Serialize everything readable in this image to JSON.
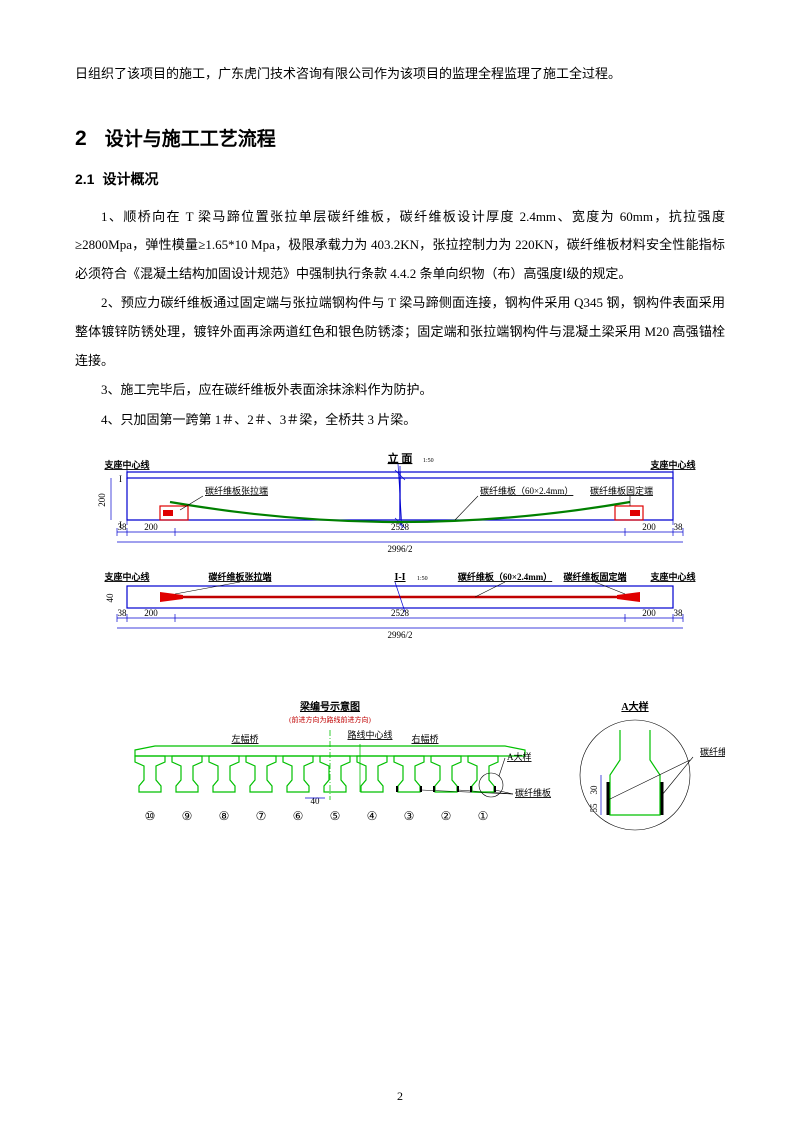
{
  "intro": "日组织了该项目的施工，广东虎门技术咨询有限公司作为该项目的监理全程监理了施工全过程。",
  "section": {
    "num": "2",
    "title": "设计与施工工艺流程"
  },
  "subsection": {
    "num": "2.1",
    "title": "设计概况"
  },
  "paragraphs": [
    "1、顺桥向在 T 梁马蹄位置张拉单层碳纤维板，碳纤维板设计厚度 2.4mm、宽度为 60mm，抗拉强度≥2800Mpa，弹性模量≥1.65*10  Mpa，极限承载力为 403.2KN，张拉控制力为 220KN，碳纤维板材料安全性能指标必须符合《混凝土结构加固设计规范》中强制执行条款 4.4.2 条单向织物（布）高强度Ⅰ级的规定。",
    "2、预应力碳纤维板通过固定端与张拉端钢构件与 T 梁马蹄侧面连接，钢构件采用 Q345 钢，钢构件表面采用整体镀锌防锈处理，镀锌外面再涂两道红色和银色防锈漆；固定端和张拉端钢构件与混凝土梁采用 M20 高强锚栓连接。",
    "3、施工完毕后，应在碳纤维板外表面涂抹涂料作为防护。",
    "4、只加固第一跨第 1＃、2＃、3＃梁，全桥共 3 片梁。"
  ],
  "diagram": {
    "colors": {
      "blue": "#0000d0",
      "green": "#00c000",
      "green_dark": "#008000",
      "red": "#e00000",
      "black": "#000000",
      "bg": "#ffffff"
    },
    "elevation": {
      "title": "立 面",
      "scale": "1:50",
      "left_label": "支座中心线",
      "right_label": "支座中心线",
      "tension_end": "碳纤维板张拉端",
      "cfrp_label": "碳纤维板（60×2.4mm）",
      "fixed_end": "碳纤维板固定端",
      "height_dim": "200",
      "dims": [
        "38",
        "200",
        "2528",
        "200",
        "38"
      ],
      "center_dim": "2996/2"
    },
    "section_ii": {
      "title": "I-I",
      "scale": "1:50",
      "left_label": "支座中心线",
      "tension_end": "碳纤维板张拉端",
      "cfrp_label": "碳纤维板（60×2.4mm）",
      "fixed_end": "碳纤维板固定端",
      "right_label": "支座中心线",
      "dims": [
        "38",
        "200",
        "2528",
        "200",
        "38"
      ],
      "center_dim": "2996/2",
      "girder_h": "40"
    },
    "beam_layout": {
      "title": "梁编号示意图",
      "subtitle": "(前进方向为路线前进方向)",
      "left_label": "左幅桥",
      "center_label": "路线中心线",
      "right_label": "右幅桥",
      "detail_label": "A大样",
      "cfrp_label": "碳纤维板",
      "spacing": "40",
      "numbers": [
        "⑩",
        "⑨",
        "⑧",
        "⑦",
        "⑥",
        "⑤",
        "④",
        "③",
        "②",
        "①"
      ]
    },
    "detail_a": {
      "title": "A大样",
      "label": "碳纤维板",
      "h1": "30",
      "h2": "55"
    }
  },
  "page": "2"
}
